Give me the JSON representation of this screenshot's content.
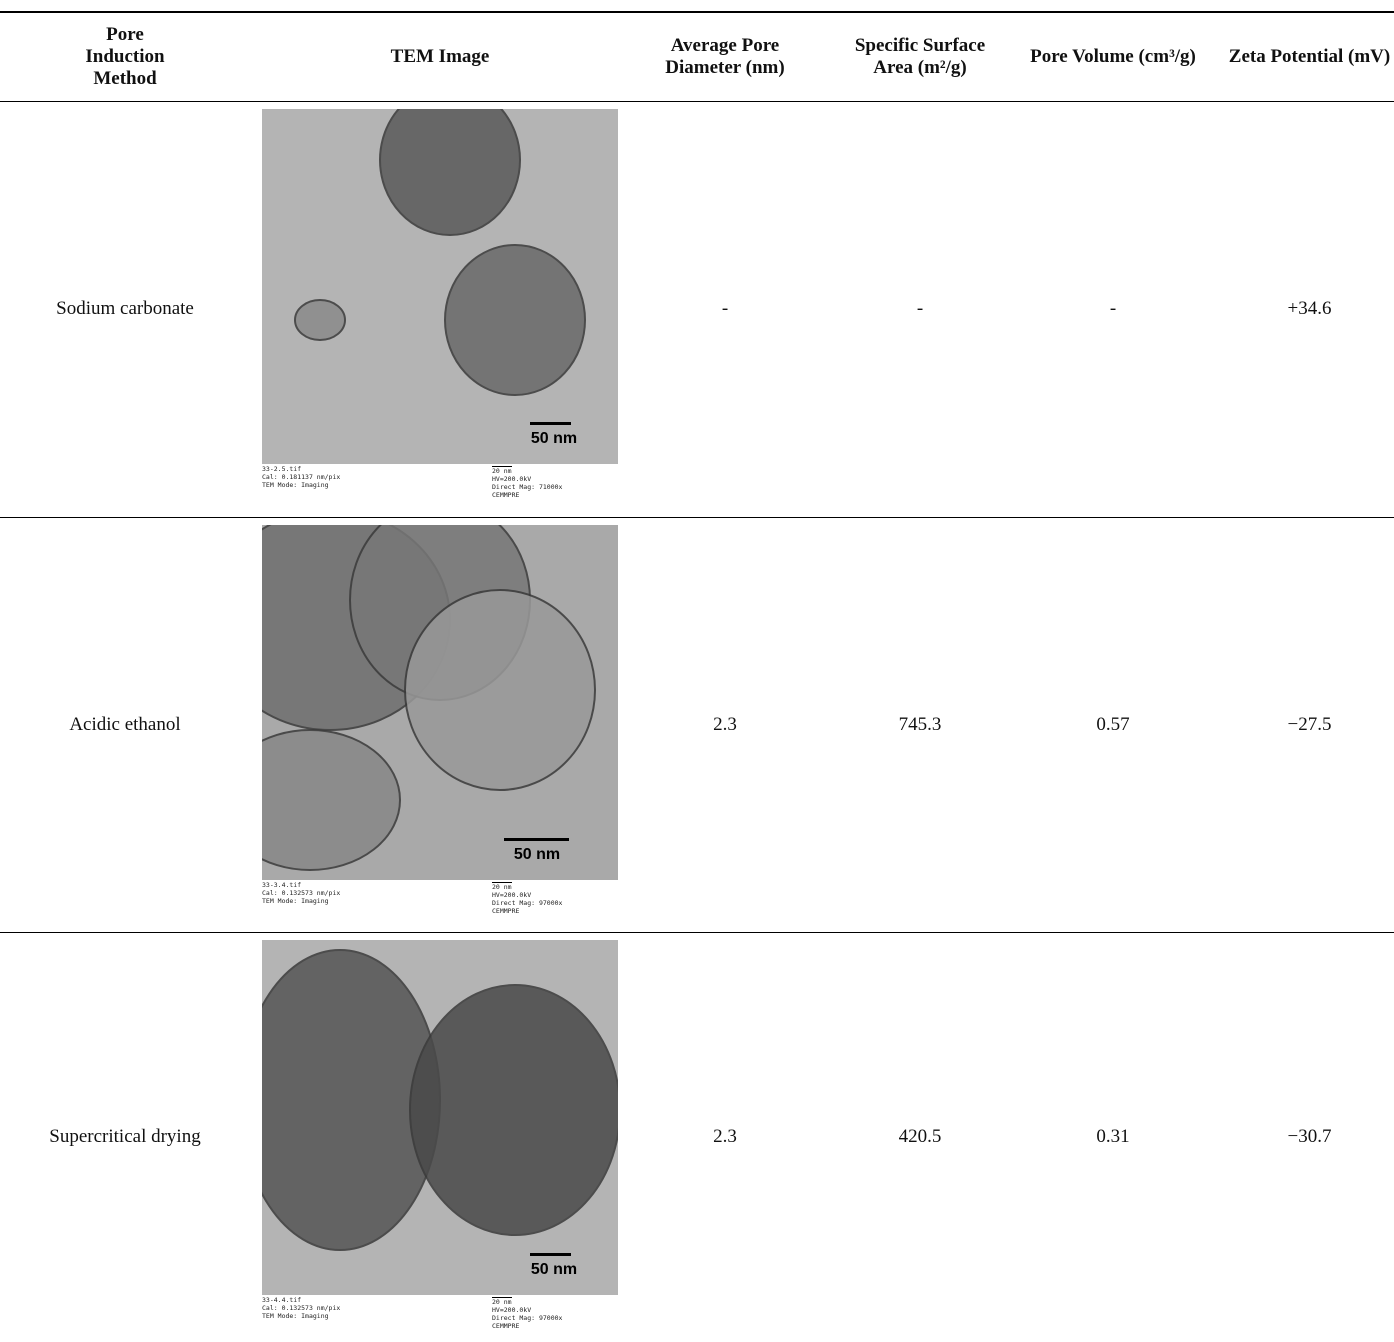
{
  "table": {
    "header": [
      "Pore Induction Method",
      "TEM Image",
      "Average Pore Diameter (nm)",
      "Specific Surface Area (m²/g)",
      "Pore Volume (cm³/g)",
      "Zeta Potential (mV)"
    ],
    "rows": [
      {
        "method": "Sodium carbonate",
        "image": {
          "scale": "50 nm",
          "file": "33-2.5.tif",
          "cal": "Cal: 0.181137 nm/pix",
          "mode": "TEM Mode: Imaging",
          "small_scale": "20 nm",
          "hv": "HV=200.0kV",
          "mag": "Direct Mag: 71000x",
          "lab": "CEMMPRE"
        },
        "values": [
          "-",
          "-",
          "-",
          "+34.6"
        ]
      },
      {
        "method": "Acidic ethanol",
        "image": {
          "scale": "50 nm",
          "file": "33-3.4.tif",
          "cal": "Cal: 0.132573 nm/pix",
          "mode": "TEM Mode: Imaging",
          "small_scale": "20 nm",
          "hv": "HV=200.0kV",
          "mag": "Direct Mag: 97000x",
          "lab": "CEMMPRE"
        },
        "values": [
          "2.3",
          "745.3",
          "0.57",
          "−27.5"
        ]
      },
      {
        "method": "Supercritical drying",
        "image": {
          "scale": "50 nm",
          "file": "33-4.4.tif",
          "cal": "Cal: 0.132573 nm/pix",
          "mode": "TEM Mode: Imaging",
          "small_scale": "20 nm",
          "hv": "HV=200.0kV",
          "mag": "Direct Mag: 97000x",
          "lab": "CEMMPRE"
        },
        "values": [
          "2.3",
          "420.5",
          "0.31",
          "−30.7"
        ]
      }
    ]
  }
}
